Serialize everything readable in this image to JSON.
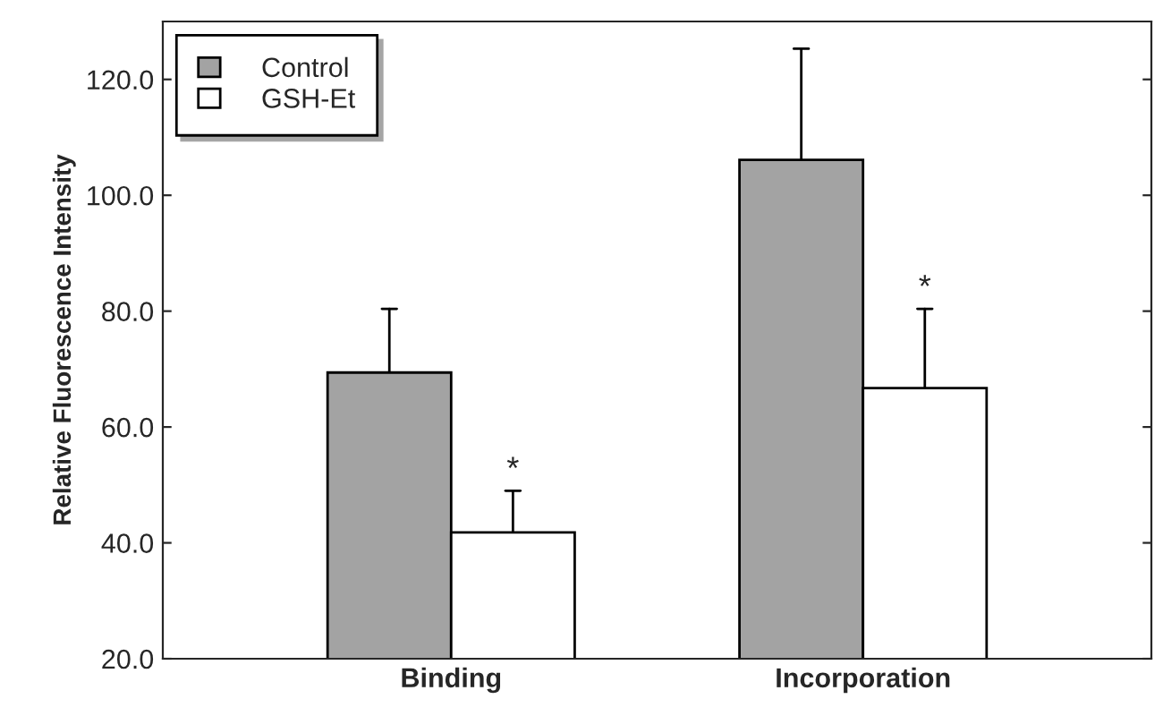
{
  "chart_data": {
    "type": "bar",
    "ylabel": "Relative Fluorescence Intensity",
    "categories": [
      "Binding",
      "Incorporation"
    ],
    "series": [
      {
        "name": "Control",
        "color": "#a3a3a3",
        "values": [
          69.4,
          106.1
        ],
        "errors": [
          [
            69.4,
            80.4
          ],
          [
            106.1,
            125.3
          ]
        ]
      },
      {
        "name": "GSH-Et",
        "color": "#ffffff",
        "values": [
          41.8,
          66.7
        ],
        "errors": [
          [
            41.8,
            49.0
          ],
          [
            66.7,
            80.4
          ]
        ]
      }
    ],
    "ylim": [
      20,
      130
    ],
    "yticks": [
      {
        "value": 20,
        "label": "20.0"
      },
      {
        "value": 40,
        "label": "40.0"
      },
      {
        "value": 60,
        "label": "60.0"
      },
      {
        "value": 80,
        "label": "80.0"
      },
      {
        "value": 100,
        "label": "100.0"
      },
      {
        "value": 120,
        "label": "120.0"
      }
    ],
    "annotations": [
      {
        "text": "*",
        "x": "Binding",
        "y": 49.0
      },
      {
        "text": "*",
        "x": "Incorporation",
        "y": 80.4
      }
    ],
    "legend": "top left",
    "grid": false
  }
}
